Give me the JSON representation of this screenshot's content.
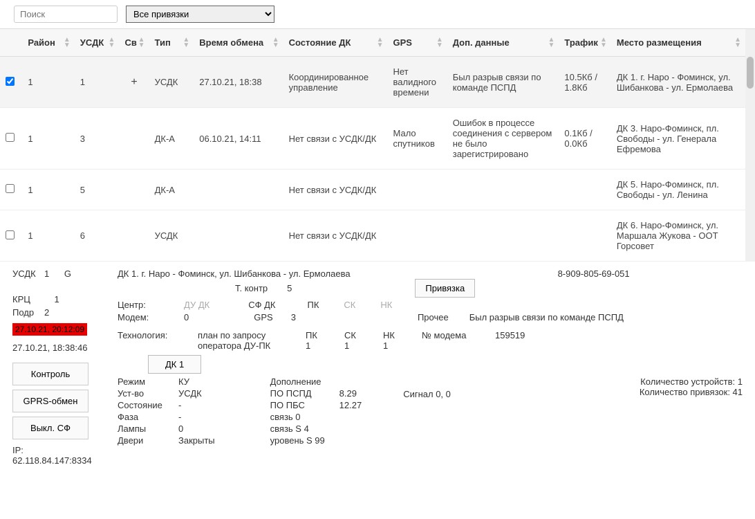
{
  "search": {
    "placeholder": "Поиск"
  },
  "bindingsSelect": {
    "value": "Все привязки"
  },
  "columns": [
    "",
    "Район",
    "УСДК",
    "Св",
    "Тип",
    "Время обмена",
    "Состояние ДК",
    "GPS",
    "Доп. данные",
    "Трафик",
    "Место размещения"
  ],
  "rows": [
    {
      "checked": true,
      "rayon": "1",
      "usdk": "1",
      "sv": "+",
      "tip": "УСДК",
      "time": "27.10.21, 18:38",
      "state": "Координированное управление",
      "gps": "Нет валидного времени",
      "dop": "Был разрыв связи по команде ПСПД",
      "traf": "10.5Кб / 1.8Кб",
      "loc": "ДК 1. г. Наро - Фоминск, ул. Шибанкова - ул. Ермолаева"
    },
    {
      "checked": false,
      "rayon": "1",
      "usdk": "3",
      "sv": "",
      "tip": "ДК-А",
      "time": "06.10.21, 14:11",
      "state": "Нет связи с УСДК/ДК",
      "gps": "Мало спутников",
      "dop": "Ошибок в процессе соединения с сервером не было зарегистрировано",
      "traf": "0.1Кб / 0.0Кб",
      "loc": "ДК 3. Наро-Фоминск, пл. Свободы - ул. Генерала Ефремова"
    },
    {
      "checked": false,
      "rayon": "1",
      "usdk": "5",
      "sv": "",
      "tip": "ДК-А",
      "time": "",
      "state": "Нет связи с УСДК/ДК",
      "gps": "",
      "dop": "",
      "traf": "",
      "loc": "ДК 5. Наро-Фоминск, пл. Свободы - ул. Ленина"
    },
    {
      "checked": false,
      "rayon": "1",
      "usdk": "6",
      "sv": "",
      "tip": "УСДК",
      "time": "",
      "state": "Нет связи с УСДК/ДК",
      "gps": "",
      "dop": "",
      "traf": "",
      "loc": "ДК 6. Наро-Фоминск, ул. Маршала Жукова - ООТ Горсовет"
    }
  ],
  "detail": {
    "usdkLabel": "УСДК",
    "usdkVal": "1",
    "g": "G",
    "krcLabel": "КРЦ",
    "krcVal": "1",
    "podrLabel": "Подр",
    "podrVal": "2",
    "redTime": "27.10.21, 20:12:09",
    "ts2": "27.10.21, 18:38:46",
    "btnControl": "Контроль",
    "btnGprs": "GPRS-обмен",
    "btnVykl": "Выкл. СФ",
    "ipLabel": "IP:",
    "ip": "62.118.84.147:8334",
    "title": "ДК 1. г. Наро - Фоминск, ул. Шибанкова - ул. Ермолаева",
    "phone": "8-909-805-69-051",
    "tkontr": "Т. контр",
    "tkontrVal": "5",
    "btnPriv": "Привязка",
    "centrLabel": "Центр:",
    "duDk": "ДУ ДК",
    "sfDk": "СФ ДК",
    "pk": "ПК",
    "sk": "СК",
    "nk": "НК",
    "modemLabel": "Модем:",
    "modemVal": "0",
    "gpsLabel": "GPS",
    "gpsVal": "3",
    "procheeLabel": "Прочее",
    "procheeVal": "Был разрыв связи по команде ПСПД",
    "techLabel": "Технология:",
    "techVal1": "план по запросу",
    "techVal2": "оператора ДУ-ПК",
    "pk2": "ПК",
    "sk2": "СК",
    "nk2": "НК",
    "v1": "1",
    "v2": "1",
    "v3": "1",
    "nmodemLabel": "№ модема",
    "nmodemVal": "159519",
    "tabDk1": "ДК 1",
    "rezhimL": "Режим",
    "rezhimV": "КУ",
    "ustvoL": "Уст-во",
    "ustvoV": "УСДК",
    "sostL": "Состояние",
    "sostV": "-",
    "fazaL": "Фаза",
    "fazaV": "-",
    "lampyL": "Лампы",
    "lampyV": "0",
    "dveriL": "Двери",
    "dveriV": "Закрыты",
    "dopolL": "Дополнение",
    "popspd": "ПО ПСПД",
    "popspdV": "8.29",
    "popbs": "ПО ПБС",
    "popbsV": "12.27",
    "svyaz0": "связь 0",
    "svyazS4": "связь S 4",
    "urovenS99": "уровень S 99",
    "signal": "Сигнал 0, 0",
    "countDev": "Количество устройств: 1",
    "countBind": "Количество привязок: 41"
  }
}
